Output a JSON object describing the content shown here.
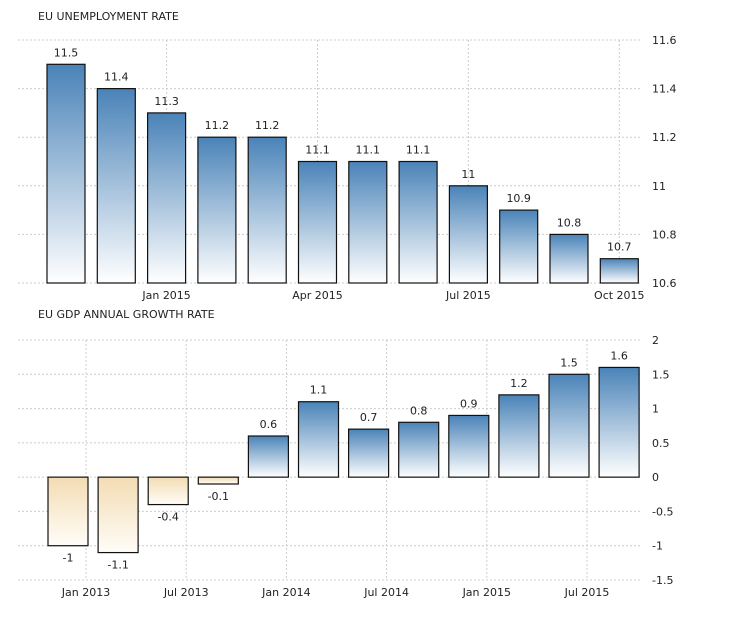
{
  "chart_data": [
    {
      "type": "bar",
      "title": "EU UNEMPLOYMENT RATE",
      "values": [
        11.5,
        11.4,
        11.3,
        11.2,
        11.2,
        11.1,
        11.1,
        11.1,
        11,
        10.9,
        10.8,
        10.7
      ],
      "labels": [
        "11.5",
        "11.4",
        "11.3",
        "11.2",
        "11.2",
        "11.1",
        "11.1",
        "11.1",
        "11",
        "10.9",
        "10.8",
        "10.7"
      ],
      "xticks": [
        {
          "index": 2,
          "label": "Jan 2015"
        },
        {
          "index": 5,
          "label": "Apr 2015"
        },
        {
          "index": 8,
          "label": "Jul 2015"
        },
        {
          "index": 11,
          "label": "Oct 2015"
        }
      ],
      "ylim": [
        10.6,
        11.6
      ],
      "yticks": [
        {
          "v": 11.6,
          "label": "11.6"
        },
        {
          "v": 11.4,
          "label": "11.4"
        },
        {
          "v": 11.2,
          "label": "11.2"
        },
        {
          "v": 11,
          "label": "11"
        },
        {
          "v": 10.8,
          "label": "10.8"
        },
        {
          "v": 10.6,
          "label": "10.6"
        }
      ],
      "grid": true,
      "positive_color": "#4a83b8",
      "negative_color": "#f3dcb3"
    },
    {
      "type": "bar",
      "title": "EU GDP ANNUAL GROWTH RATE",
      "values": [
        -1,
        -1.1,
        -0.4,
        -0.1,
        0.6,
        1.1,
        0.7,
        0.8,
        0.9,
        1.2,
        1.5,
        1.6
      ],
      "labels": [
        "-1",
        "-1.1",
        "-0.4",
        "-0.1",
        "0.6",
        "1.1",
        "0.7",
        "0.8",
        "0.9",
        "1.2",
        "1.5",
        "1.6"
      ],
      "xticks": [
        {
          "index": 0,
          "label": "Jan 2013"
        },
        {
          "index": 2,
          "label": "Jul 2013"
        },
        {
          "index": 4,
          "label": "Jan 2014"
        },
        {
          "index": 6,
          "label": "Jul 2014"
        },
        {
          "index": 8,
          "label": "Jan 2015"
        },
        {
          "index": 10,
          "label": "Jul 2015"
        }
      ],
      "ylim": [
        -1.5,
        2
      ],
      "yticks": [
        {
          "v": 2,
          "label": "2"
        },
        {
          "v": 1.5,
          "label": "1.5"
        },
        {
          "v": 1,
          "label": "1"
        },
        {
          "v": 0.5,
          "label": "0.5"
        },
        {
          "v": 0,
          "label": "0"
        },
        {
          "v": -0.5,
          "label": "-0.5"
        },
        {
          "v": -1,
          "label": "-1"
        },
        {
          "v": -1.5,
          "label": "-1.5"
        }
      ],
      "grid": true,
      "positive_color": "#4a83b8",
      "negative_color": "#f3dcb3"
    }
  ]
}
